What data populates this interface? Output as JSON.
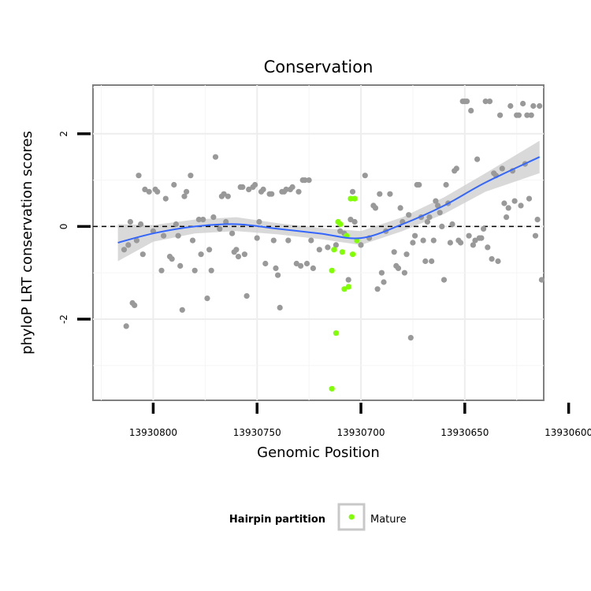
{
  "chart_data": {
    "type": "scatter",
    "title": "Conservation",
    "xlabel": "Genomic Position",
    "ylabel": "phyloP LRT conservation scores",
    "x_reversed": true,
    "xlim": [
      13930612,
      13930829
    ],
    "ylim": [
      -3.75,
      3.05
    ],
    "x_ticks": [
      13930800,
      13930750,
      13930700,
      13930650,
      13930600
    ],
    "y_ticks": [
      -2,
      0,
      2
    ],
    "reference_line_y": 0,
    "grid": true,
    "legend": {
      "title": "Hairpin partition",
      "position": "bottom",
      "entries": [
        {
          "label": "Mature",
          "color": "#7fff00"
        }
      ]
    },
    "colors": {
      "points_other": "#999999",
      "points_mature": "#7fff00",
      "smooth_line": "#3366ff",
      "ribbon": "#cccccc"
    },
    "series": [
      {
        "color": "#999999",
        "points": [
          [
            13930814,
            -0.5
          ],
          [
            13930813,
            -2.15
          ],
          [
            13930812,
            -0.4
          ],
          [
            13930811,
            0.1
          ],
          [
            13930810,
            -1.65
          ],
          [
            13930809,
            -1.7
          ],
          [
            13930808,
            -0.3
          ],
          [
            13930807,
            1.1
          ],
          [
            13930806,
            0.05
          ],
          [
            13930805,
            -0.6
          ],
          [
            13930804,
            0.8
          ],
          [
            13930802,
            0.75
          ],
          [
            13930800,
            -0.1
          ],
          [
            13930799,
            0.8
          ],
          [
            13930798,
            0.75
          ],
          [
            13930796,
            -0.95
          ],
          [
            13930795,
            -0.2
          ],
          [
            13930794,
            0.6
          ],
          [
            13930792,
            -0.65
          ],
          [
            13930791,
            -0.7
          ],
          [
            13930790,
            0.9
          ],
          [
            13930789,
            0.05
          ],
          [
            13930788,
            -0.2
          ],
          [
            13930787,
            -0.85
          ],
          [
            13930786,
            -1.8
          ],
          [
            13930785,
            0.65
          ],
          [
            13930784,
            0.75
          ],
          [
            13930782,
            1.1
          ],
          [
            13930781,
            -0.3
          ],
          [
            13930780,
            -0.95
          ],
          [
            13930778,
            0.15
          ],
          [
            13930777,
            -0.6
          ],
          [
            13930776,
            0.15
          ],
          [
            13930774,
            -1.55
          ],
          [
            13930773,
            -0.5
          ],
          [
            13930772,
            -0.95
          ],
          [
            13930771,
            0.2
          ],
          [
            13930770,
            1.5
          ],
          [
            13930768,
            -0.05
          ],
          [
            13930767,
            0.65
          ],
          [
            13930766,
            0.7
          ],
          [
            13930765,
            0.1
          ],
          [
            13930764,
            0.65
          ],
          [
            13930762,
            -0.15
          ],
          [
            13930761,
            -0.55
          ],
          [
            13930760,
            -0.5
          ],
          [
            13930759,
            -0.65
          ],
          [
            13930758,
            0.85
          ],
          [
            13930757,
            0.85
          ],
          [
            13930756,
            -0.6
          ],
          [
            13930755,
            -1.5
          ],
          [
            13930754,
            0.8
          ],
          [
            13930752,
            0.85
          ],
          [
            13930751,
            0.9
          ],
          [
            13930750,
            -0.25
          ],
          [
            13930749,
            0.1
          ],
          [
            13930748,
            0.75
          ],
          [
            13930747,
            0.8
          ],
          [
            13930746,
            -0.8
          ],
          [
            13930744,
            0.7
          ],
          [
            13930743,
            0.7
          ],
          [
            13930742,
            -0.3
          ],
          [
            13930741,
            -0.9
          ],
          [
            13930740,
            -1.05
          ],
          [
            13930739,
            -1.75
          ],
          [
            13930738,
            0.75
          ],
          [
            13930737,
            0.75
          ],
          [
            13930736,
            0.8
          ],
          [
            13930735,
            -0.3
          ],
          [
            13930734,
            0.8
          ],
          [
            13930733,
            0.85
          ],
          [
            13930731,
            -0.8
          ],
          [
            13930730,
            0.75
          ],
          [
            13930729,
            -0.85
          ],
          [
            13930728,
            1.0
          ],
          [
            13930727,
            1.0
          ],
          [
            13930726,
            -0.8
          ],
          [
            13930725,
            1.0
          ],
          [
            13930724,
            -0.3
          ],
          [
            13930723,
            -0.9
          ],
          [
            13930720,
            -0.5
          ],
          [
            13930716,
            -0.45
          ],
          [
            13930712,
            -0.4
          ],
          [
            13930710,
            -0.1
          ],
          [
            13930708,
            -0.15
          ],
          [
            13930706,
            -1.15
          ],
          [
            13930705,
            0.15
          ],
          [
            13930704,
            0.75
          ],
          [
            13930703,
            0.1
          ],
          [
            13930700,
            -0.4
          ],
          [
            13930698,
            1.1
          ],
          [
            13930696,
            -0.25
          ],
          [
            13930694,
            0.45
          ],
          [
            13930693,
            0.4
          ],
          [
            13930692,
            -1.35
          ],
          [
            13930691,
            0.7
          ],
          [
            13930690,
            -1.0
          ],
          [
            13930689,
            -1.2
          ],
          [
            13930688,
            -0.1
          ],
          [
            13930686,
            0.7
          ],
          [
            13930684,
            -0.55
          ],
          [
            13930683,
            -0.85
          ],
          [
            13930682,
            -0.9
          ],
          [
            13930681,
            0.4
          ],
          [
            13930680,
            0.1
          ],
          [
            13930679,
            -1.0
          ],
          [
            13930678,
            -0.6
          ],
          [
            13930677,
            0.25
          ],
          [
            13930676,
            -2.4
          ],
          [
            13930675,
            -0.35
          ],
          [
            13930674,
            -0.2
          ],
          [
            13930673,
            0.9
          ],
          [
            13930672,
            0.9
          ],
          [
            13930671,
            0.2
          ],
          [
            13930670,
            -0.3
          ],
          [
            13930669,
            -0.75
          ],
          [
            13930668,
            0.1
          ],
          [
            13930667,
            0.2
          ],
          [
            13930666,
            -0.75
          ],
          [
            13930665,
            -0.3
          ],
          [
            13930664,
            0.55
          ],
          [
            13930663,
            0.45
          ],
          [
            13930662,
            0.3
          ],
          [
            13930661,
            0.0
          ],
          [
            13930660,
            -1.15
          ],
          [
            13930659,
            0.9
          ],
          [
            13930658,
            0.5
          ],
          [
            13930657,
            -0.35
          ],
          [
            13930656,
            0.05
          ],
          [
            13930655,
            1.2
          ],
          [
            13930654,
            1.25
          ],
          [
            13930653,
            -0.3
          ],
          [
            13930652,
            -0.35
          ],
          [
            13930651,
            2.7
          ],
          [
            13930650,
            2.7
          ],
          [
            13930649,
            2.7
          ],
          [
            13930648,
            -0.2
          ],
          [
            13930647,
            2.5
          ],
          [
            13930646,
            -0.4
          ],
          [
            13930645,
            -0.3
          ],
          [
            13930644,
            1.45
          ],
          [
            13930643,
            -0.25
          ],
          [
            13930642,
            -0.25
          ],
          [
            13930641,
            -0.05
          ],
          [
            13930640,
            2.7
          ],
          [
            13930639,
            -0.45
          ],
          [
            13930638,
            2.7
          ],
          [
            13930637,
            -0.7
          ],
          [
            13930636,
            1.15
          ],
          [
            13930635,
            1.1
          ],
          [
            13930634,
            -0.75
          ],
          [
            13930633,
            2.4
          ],
          [
            13930632,
            1.25
          ],
          [
            13930631,
            0.5
          ],
          [
            13930630,
            0.2
          ],
          [
            13930629,
            0.4
          ],
          [
            13930628,
            2.6
          ],
          [
            13930627,
            1.2
          ],
          [
            13930626,
            0.55
          ],
          [
            13930625,
            2.4
          ],
          [
            13930624,
            2.4
          ],
          [
            13930623,
            0.45
          ],
          [
            13930622,
            2.65
          ],
          [
            13930621,
            1.35
          ],
          [
            13930620,
            2.4
          ],
          [
            13930619,
            0.6
          ],
          [
            13930618,
            2.4
          ],
          [
            13930617,
            2.6
          ],
          [
            13930616,
            -0.2
          ],
          [
            13930615,
            0.15
          ],
          [
            13930614,
            2.6
          ],
          [
            13930613,
            -1.15
          ]
        ]
      },
      {
        "name": "Mature",
        "color": "#7fff00",
        "points": [
          [
            13930714,
            -0.95
          ],
          [
            13930714,
            -3.5
          ],
          [
            13930713,
            -0.5
          ],
          [
            13930712,
            -2.3
          ],
          [
            13930711,
            0.1
          ],
          [
            13930710,
            0.05
          ],
          [
            13930709,
            -0.55
          ],
          [
            13930708,
            -1.35
          ],
          [
            13930707,
            -0.2
          ],
          [
            13930706,
            -1.3
          ],
          [
            13930705,
            0.6
          ],
          [
            13930704,
            -0.6
          ],
          [
            13930703,
            0.6
          ],
          [
            13930702,
            -0.3
          ]
        ]
      }
    ],
    "smooth": {
      "x": [
        13930817,
        13930800,
        13930780,
        13930760,
        13930740,
        13930720,
        13930700,
        13930680,
        13930660,
        13930640,
        13930614
      ],
      "y": [
        -0.35,
        -0.15,
        0.0,
        0.05,
        -0.05,
        -0.15,
        -0.25,
        0.05,
        0.45,
        0.95,
        1.5
      ],
      "ci_half_width": [
        0.4,
        0.18,
        0.15,
        0.15,
        0.12,
        0.12,
        0.15,
        0.15,
        0.18,
        0.2,
        0.35
      ]
    }
  }
}
